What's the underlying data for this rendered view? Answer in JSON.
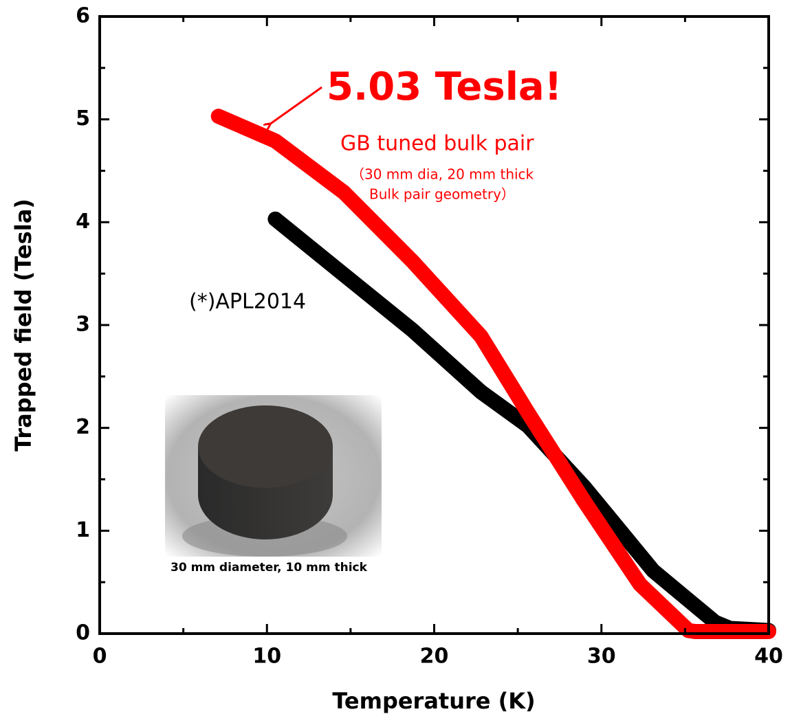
{
  "chart_data": {
    "type": "line",
    "x_label": "Temperature (K)",
    "y_label": "Trapped field  (Tesla)",
    "xlim": [
      0,
      40
    ],
    "xticks": [
      0,
      10,
      20,
      30,
      40
    ],
    "xticks_minor": [
      5,
      15,
      25,
      35
    ],
    "ylim": [
      0,
      6
    ],
    "yticks": [
      0,
      1,
      2,
      3,
      4,
      5,
      6
    ],
    "yticks_minor": [
      0.5,
      1.5,
      2.5,
      3.5,
      4.5,
      5.5
    ],
    "series": [
      {
        "color": "#000000",
        "x": [
          10.5,
          14.6,
          18.7,
          22.8,
          25.6,
          29.0,
          33.1,
          36.8,
          37.7,
          40
        ],
        "values": [
          4.03,
          3.49,
          2.95,
          2.35,
          2.02,
          1.42,
          0.61,
          0.11,
          0.05,
          0.03
        ]
      },
      {
        "color": "#ff0000",
        "x": [
          7.1,
          10.5,
          14.6,
          18.7,
          22.8,
          25.6,
          29.0,
          32.3,
          35.2,
          35.6,
          40
        ],
        "values": [
          5.03,
          4.79,
          4.29,
          3.62,
          2.89,
          2.15,
          1.28,
          0.48,
          0.03,
          0.02,
          0.02
        ]
      }
    ],
    "annotations": [
      "5.03 Tesla!",
      "GB tuned bulk pair",
      "（30 mm dia, 20 mm thick",
      "Bulk pair geometry）",
      "(*)APL2014",
      "30 mm diameter, 10 mm thick"
    ]
  }
}
